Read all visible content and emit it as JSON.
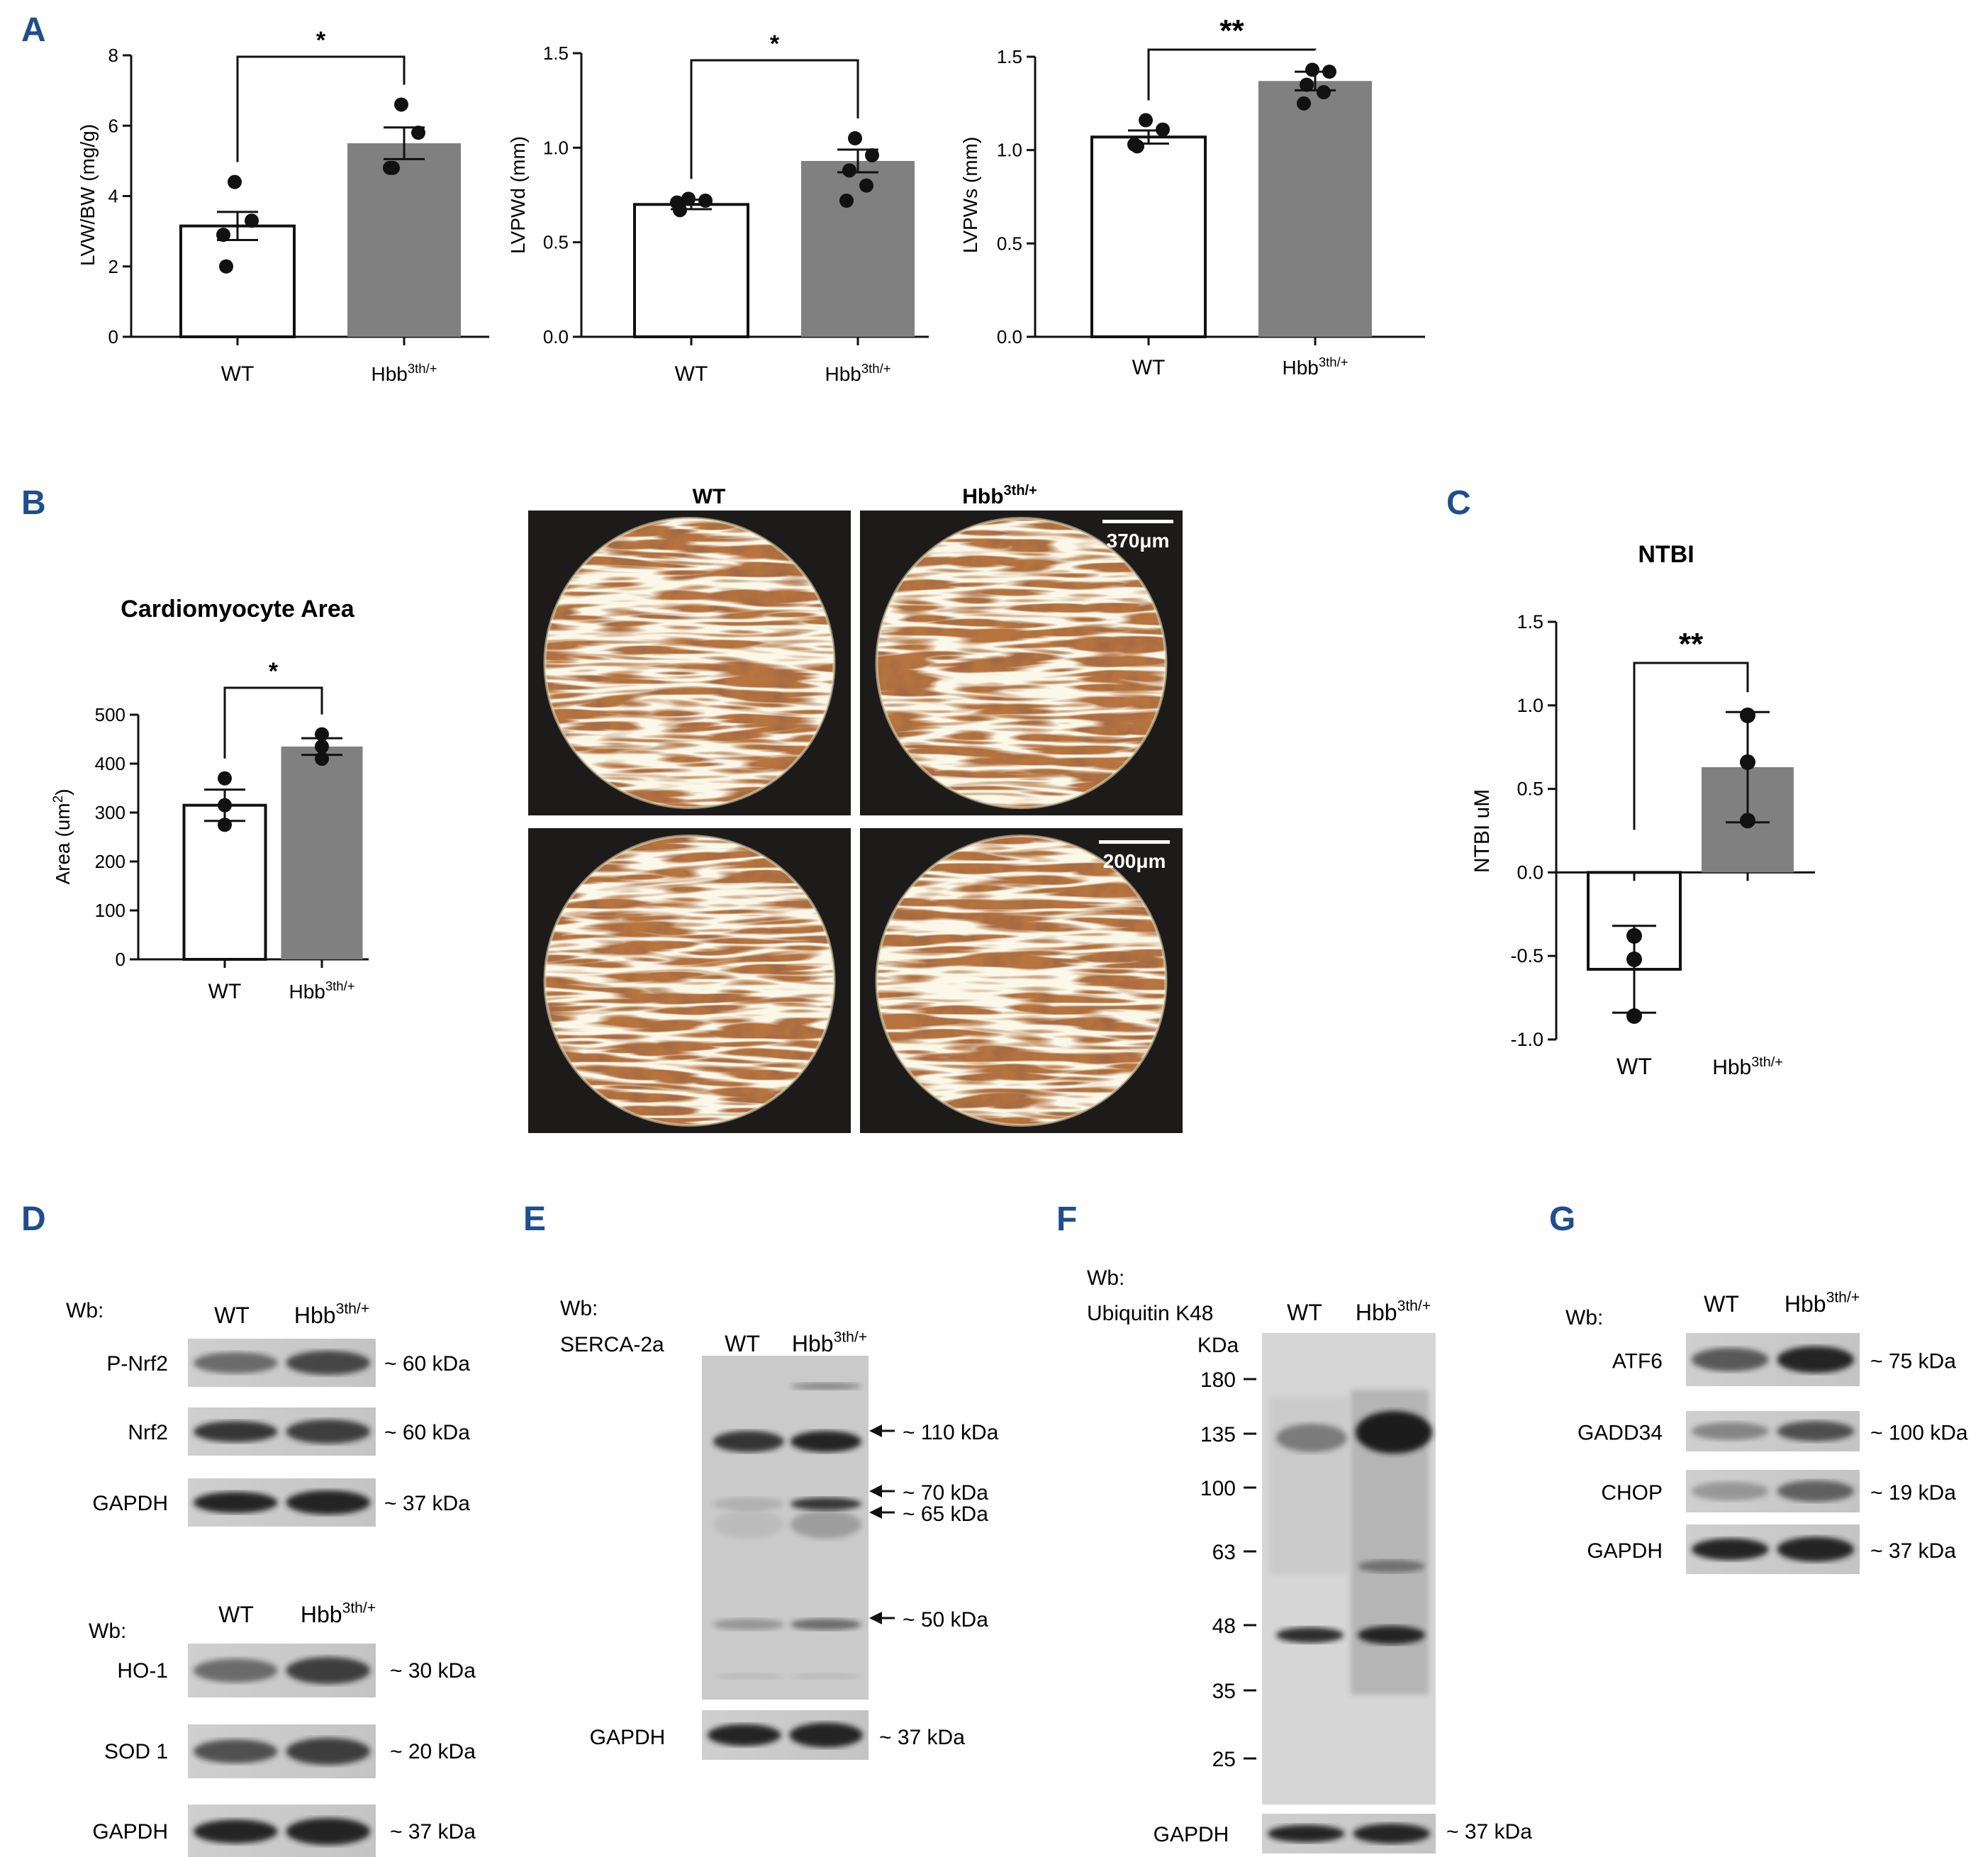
{
  "panels": {
    "a": "A",
    "b": "B",
    "c": "C",
    "d": "D",
    "e": "E",
    "f": "F",
    "g": "G"
  },
  "chart_data": [
    {
      "type": "bar",
      "panel": "A",
      "ylabel": "LVW/BW (mg/g)",
      "categories": [
        "WT",
        "Hbb3th/+"
      ],
      "values": [
        3.15,
        5.5
      ],
      "sem": [
        0.4,
        0.45
      ],
      "ylim": [
        0,
        8
      ],
      "yticks": [
        "0",
        "2",
        "4",
        "6",
        "8"
      ],
      "significance": "*",
      "points": [
        [
          4.4,
          3.3,
          2.9,
          2.0
        ],
        [
          6.6,
          5.8,
          4.8,
          4.8
        ]
      ]
    },
    {
      "type": "bar",
      "panel": "A",
      "ylabel": "LVPWd (mm)",
      "categories": [
        "WT",
        "Hbb3th/+"
      ],
      "values": [
        0.7,
        0.93
      ],
      "sem": [
        0.025,
        0.06
      ],
      "ylim": [
        0,
        1.5
      ],
      "yticks": [
        "0.0",
        "0.5",
        "1.0",
        "1.5"
      ],
      "significance": "*",
      "points": [
        [
          0.73,
          0.72,
          0.71,
          0.67
        ],
        [
          1.05,
          0.96,
          0.88,
          0.8,
          0.72
        ]
      ]
    },
    {
      "type": "bar",
      "panel": "A",
      "ylabel": "LVPWs (mm)",
      "categories": [
        "WT",
        "Hbb3th/+"
      ],
      "values": [
        1.07,
        1.37
      ],
      "sem": [
        0.035,
        0.05
      ],
      "ylim": [
        0,
        1.5
      ],
      "yticks": [
        "0.0",
        "0.5",
        "1.0",
        "1.5"
      ],
      "significance": "**",
      "points": [
        [
          1.16,
          1.11,
          1.03,
          1.02
        ],
        [
          1.43,
          1.42,
          1.35,
          1.31,
          1.25
        ]
      ]
    },
    {
      "type": "bar",
      "panel": "B",
      "title": "Cardiomyocyte Area",
      "ylabel": "Area (um2)",
      "categories": [
        "WT",
        "Hbb3th/+"
      ],
      "values": [
        315,
        435
      ],
      "sem": [
        32,
        17
      ],
      "ylim": [
        0,
        500
      ],
      "yticks": [
        "0",
        "100",
        "200",
        "300",
        "400",
        "500"
      ],
      "significance": "*",
      "points": [
        [
          370,
          315,
          275
        ],
        [
          460,
          435,
          410
        ]
      ]
    },
    {
      "type": "bar",
      "panel": "C",
      "title": "NTBI",
      "ylabel": "NTBI uM",
      "categories": [
        "WT",
        "Hbb3th/+"
      ],
      "values": [
        -0.58,
        0.63
      ],
      "error": [
        0.26,
        0.33
      ],
      "ylim": [
        -1.0,
        1.5
      ],
      "yticks": [
        "-1.0",
        "-0.5",
        "0.0",
        "0.5",
        "1.0",
        "1.5"
      ],
      "significance": "**",
      "points": [
        [
          -0.38,
          -0.52,
          -0.86
        ],
        [
          0.94,
          0.66,
          0.31
        ]
      ]
    }
  ],
  "superscript": "3th/+",
  "histology": {
    "col_labels": [
      "WT",
      "Hbb"
    ],
    "col_sup": "3th/+",
    "scale_bars": [
      "370μm",
      "200μm"
    ]
  },
  "blots": {
    "d": {
      "wb1": "Wb:",
      "lanes": [
        "WT",
        "Hbb"
      ],
      "sup": "3th/+",
      "rows1": [
        {
          "label": "P-Nrf2",
          "size": "~ 60 kDa"
        },
        {
          "label": "Nrf2",
          "size": "~ 60 kDa"
        },
        {
          "label": "GAPDH",
          "size": "~ 37 kDa"
        }
      ],
      "wb2": "Wb:",
      "rows2": [
        {
          "label": "HO-1",
          "size": "~ 30 kDa"
        },
        {
          "label": "SOD 1",
          "size": "~ 20 kDa"
        },
        {
          "label": "GAPDH",
          "size": "~ 37 kDa"
        }
      ]
    },
    "e": {
      "wb": "Wb:",
      "antibody": "SERCA-2a",
      "lanes": [
        "WT",
        "Hbb"
      ],
      "sup": "3th/+",
      "markers": [
        "~ 110 kDa",
        "~ 70 kDa",
        "~ 65 kDa",
        "~ 50 kDa"
      ],
      "loading": "GAPDH",
      "loading_size": "~ 37 kDa"
    },
    "f": {
      "wb": "Wb:",
      "antibody": "Ubiquitin K48",
      "lanes": [
        "WT",
        "Hbb"
      ],
      "sup": "3th/+",
      "unit": "KDa",
      "ladder": [
        "180",
        "135",
        "100",
        "63",
        "48",
        "35",
        "25"
      ],
      "loading": "GAPDH",
      "loading_size": "~ 37 kDa"
    },
    "g": {
      "wb": "Wb:",
      "lanes": [
        "WT",
        "Hbb"
      ],
      "sup": "3th/+",
      "rows": [
        {
          "label": "ATF6",
          "size": "~ 75 kDa"
        },
        {
          "label": "GADD34",
          "size": "~ 100 kDa"
        },
        {
          "label": "CHOP",
          "size": "~ 19 kDa"
        },
        {
          "label": "GAPDH",
          "size": "~ 37 kDa"
        }
      ]
    }
  }
}
